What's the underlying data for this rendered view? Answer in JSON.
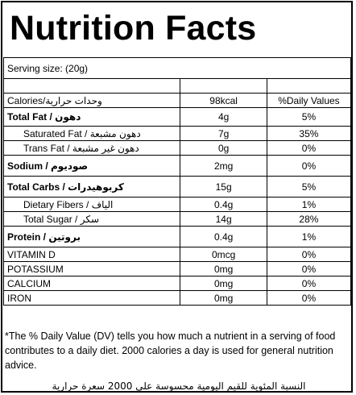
{
  "title": "Nutrition Facts",
  "serving": "Serving size:  (20g)",
  "header": {
    "nutrient": "Calories/وحدات حرارية",
    "amount": "98kcal",
    "dv": "%Daily Values"
  },
  "rows": [
    {
      "label": "Total Fat / دهون",
      "amount": "4g",
      "dv": "5%"
    },
    {
      "label": "Saturated Fat / دهون مشبعة",
      "amount": "7g",
      "dv": "35%"
    },
    {
      "label": "Trans Fat / دهون غير مشبعة",
      "amount": "0g",
      "dv": "0%"
    },
    {
      "label": "Sodium / صوديوم",
      "amount": "2mg",
      "dv": "0%"
    },
    {
      "label": "Total Carbs / كربوهيدرات",
      "amount": "15g",
      "dv": "5%"
    },
    {
      "label": "Dietary Fibers / الياف",
      "amount": "0.4g",
      "dv": "1%"
    },
    {
      "label": "Total Sugar / سكر",
      "amount": "14g",
      "dv": "28%"
    },
    {
      "label": "Protein / بروتين",
      "amount": "0.4g",
      "dv": "1%"
    },
    {
      "label": "VITAMIN D",
      "amount": "0mcg",
      "dv": "0%"
    },
    {
      "label": "POTASSIUM",
      "amount": "0mg",
      "dv": "0%"
    },
    {
      "label": "CALCIUM",
      "amount": "0mg",
      "dv": "0%"
    },
    {
      "label": "IRON",
      "amount": "0mg",
      "dv": "0%"
    }
  ],
  "footnote": "*The % Daily Value (DV) tells you how much a nutrient in a serving of food contributes to a daily diet. 2000 calories a day is used for general nutrition advice.",
  "footnote_ar": "النسبة المئوية للقيم اليومية محسوسة على 2000 سعرة حرارية"
}
